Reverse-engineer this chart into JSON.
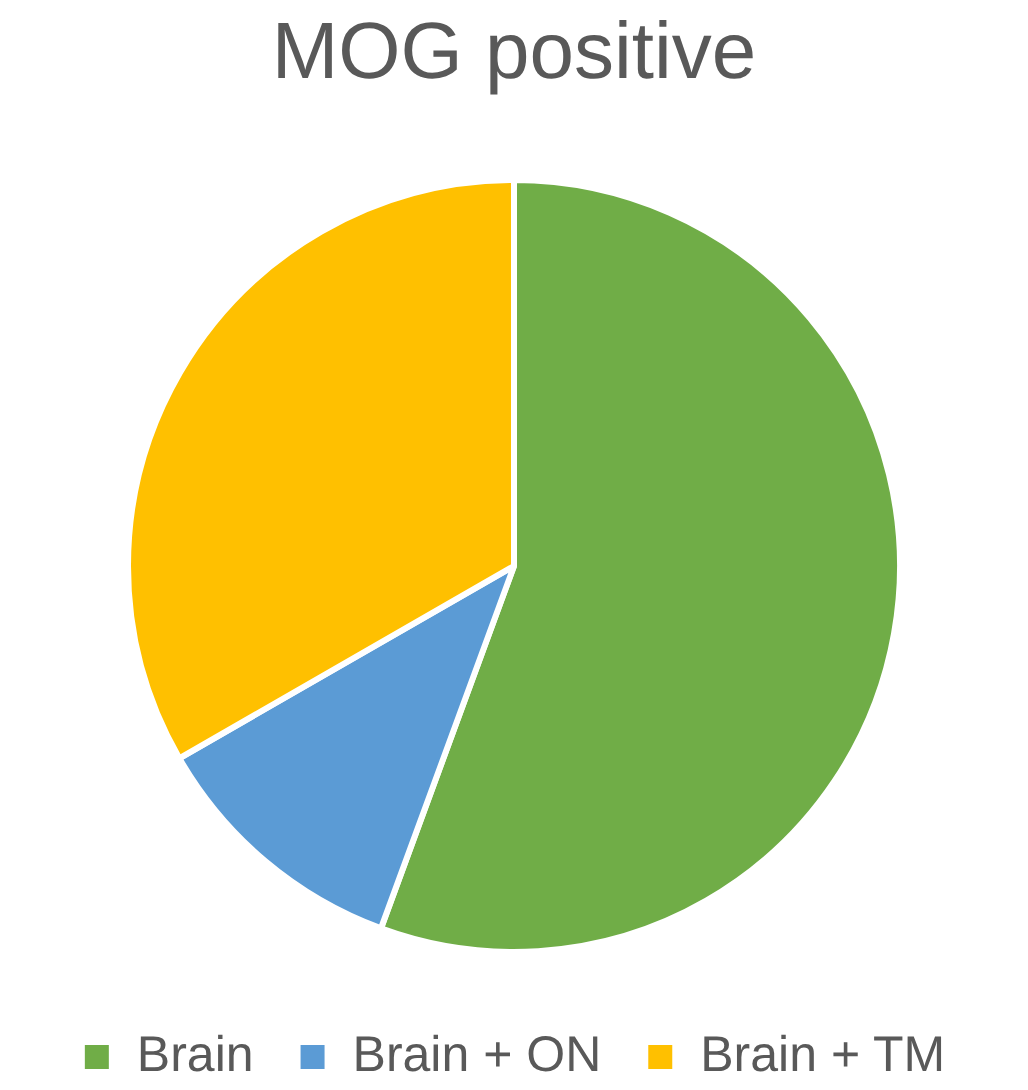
{
  "chart_data": {
    "type": "pie",
    "title": "MOG positive",
    "categories": [
      "Brain",
      "Brain + ON",
      "Brain + TM"
    ],
    "values": [
      55.6,
      11.1,
      33.3
    ],
    "colors": [
      "#70ad47",
      "#5b9bd5",
      "#ffc000"
    ],
    "legend": "bottom"
  }
}
